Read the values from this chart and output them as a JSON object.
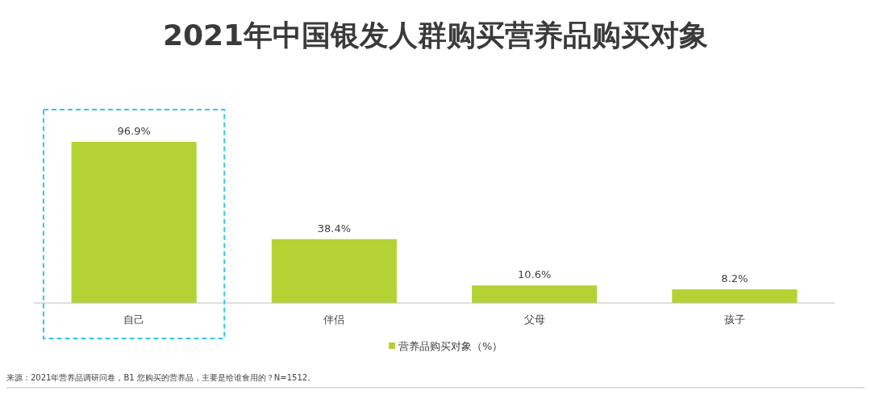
{
  "chart_data": {
    "type": "bar",
    "title": "2021年中国银发人群购买营养品购买对象",
    "categories": [
      "自己",
      "伴侣",
      "父母",
      "孩子"
    ],
    "series": [
      {
        "name": "营养品购买对象（%）",
        "color": "#b3d334",
        "values": [
          96.9,
          38.4,
          10.6,
          8.2
        ],
        "value_labels": [
          "96.9%",
          "38.4%",
          "10.6%",
          "8.2%"
        ]
      }
    ],
    "legend": "bottom",
    "annotations": [
      "来源：2021年营养品调研问卷，B1 您购买的营养品，主要是给谁食用的？N=1512。"
    ]
  }
}
